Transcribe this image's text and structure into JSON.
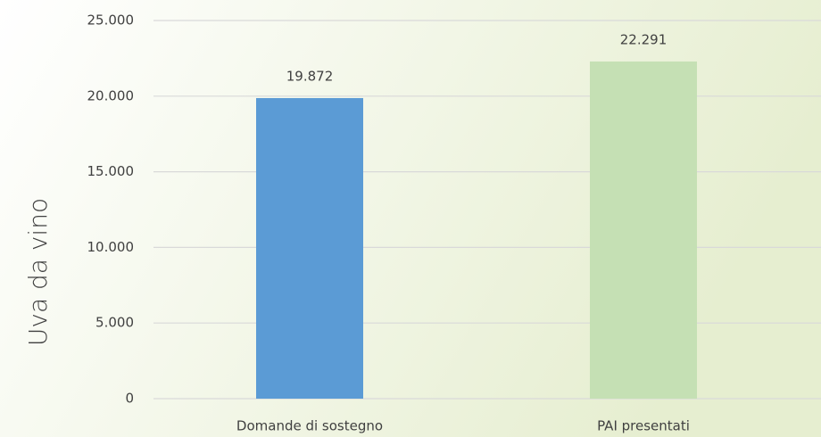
{
  "chart_data": {
    "type": "bar",
    "y_label": "Uva da vino",
    "categories": [
      "Domande di sostegno",
      "PAI presentati"
    ],
    "values": [
      19872,
      22291
    ],
    "value_labels": [
      "19.872",
      "22.291"
    ],
    "colors": [
      "#5b9bd5",
      "#c5e0b4"
    ],
    "ylim": [
      0,
      25000
    ],
    "yticks": [
      0,
      {
        "value": 5000,
        "label": "5.000"
      },
      {
        "value": 10000,
        "label": "10.000"
      },
      {
        "value": 15000,
        "label": "15.000"
      },
      {
        "value": 20000,
        "label": "20.000"
      },
      {
        "value": 25000,
        "label": "25.000"
      }
    ],
    "grid": true
  }
}
